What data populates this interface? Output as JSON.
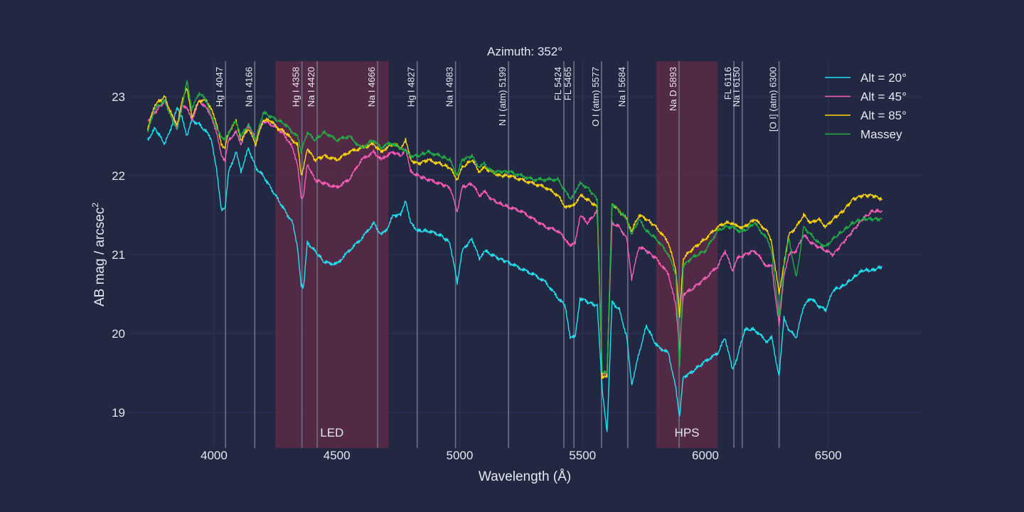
{
  "chart_data": {
    "type": "line",
    "title": "Azimuth: 352°",
    "xlabel": "Wavelength (Å)",
    "ylabel": "AB mag / arcsec",
    "ylabel_sup": "2",
    "xlim": [
      3650,
      6880
    ],
    "ylim": [
      23.45,
      18.55
    ],
    "y_inverted": true,
    "x_ticks": [
      4000,
      4500,
      5000,
      5500,
      6000,
      6500
    ],
    "y_ticks": [
      19,
      20,
      21,
      22,
      23
    ],
    "grid": true,
    "legend_position": "top-right",
    "regions": [
      {
        "label": "LED",
        "x0": 4250,
        "x1": 4710,
        "color": "#5a2a45"
      },
      {
        "label": "HPS",
        "x0": 5800,
        "x1": 6050,
        "color": "#5a2a45"
      }
    ],
    "lines": [
      {
        "label": "Hg I 4047",
        "x": 4047
      },
      {
        "label": "Na I 4166",
        "x": 4166
      },
      {
        "label": "Hg I 4358",
        "x": 4358
      },
      {
        "label": "Na I 4420",
        "x": 4420
      },
      {
        "label": "Na I 4666",
        "x": 4666
      },
      {
        "label": "Hg I 4827",
        "x": 4827
      },
      {
        "label": "Na I 4983",
        "x": 4983
      },
      {
        "label": "N I (atm) 5199",
        "x": 5199
      },
      {
        "label": "FL 5424",
        "x": 5424
      },
      {
        "label": "FL 5465",
        "x": 5465
      },
      {
        "label": "O I (atm) 5577",
        "x": 5577
      },
      {
        "label": "Na I 5684",
        "x": 5684
      },
      {
        "label": "Na D 5893",
        "x": 5893
      },
      {
        "label": "FL 6116",
        "x": 6116
      },
      {
        "label": "Na I 6150",
        "x": 6150
      },
      {
        "label": "[O I] (atm) 6300",
        "x": 6300
      }
    ],
    "series": [
      {
        "name": "Alt = 20°",
        "color": "#1fe4f2",
        "x": [
          3730,
          3760,
          3800,
          3830,
          3850,
          3870,
          3890,
          3910,
          3940,
          3970,
          3990,
          4010,
          4030,
          4045,
          4060,
          4090,
          4110,
          4140,
          4170,
          4200,
          4230,
          4260,
          4290,
          4320,
          4340,
          4355,
          4365,
          4380,
          4410,
          4450,
          4500,
          4550,
          4600,
          4650,
          4680,
          4700,
          4730,
          4760,
          4780,
          4800,
          4830,
          4870,
          4920,
          4960,
          4990,
          5010,
          5050,
          5080,
          5100,
          5130,
          5160,
          5200,
          5250,
          5300,
          5350,
          5400,
          5430,
          5450,
          5470,
          5490,
          5520,
          5560,
          5580,
          5600,
          5620,
          5650,
          5680,
          5700,
          5730,
          5760,
          5800,
          5850,
          5880,
          5895,
          5910,
          5940,
          6000,
          6050,
          6080,
          6110,
          6130,
          6160,
          6200,
          6250,
          6270,
          6300,
          6320,
          6340,
          6370,
          6400,
          6430,
          6460,
          6490,
          6520,
          6560,
          6600,
          6640,
          6680,
          6720
        ],
        "y": [
          22.45,
          22.6,
          22.4,
          22.65,
          22.85,
          22.75,
          22.5,
          22.7,
          22.65,
          22.55,
          22.45,
          22.1,
          21.55,
          21.6,
          22.05,
          22.3,
          22.05,
          22.35,
          22.1,
          22.0,
          21.85,
          21.7,
          21.55,
          21.4,
          21.1,
          20.6,
          20.6,
          21.15,
          21.05,
          20.9,
          20.88,
          21.05,
          21.2,
          21.4,
          21.25,
          21.3,
          21.5,
          21.5,
          21.7,
          21.4,
          21.3,
          21.3,
          21.25,
          21.15,
          20.65,
          21.05,
          21.2,
          20.95,
          21.05,
          21.0,
          20.95,
          20.9,
          20.82,
          20.75,
          20.65,
          20.45,
          20.35,
          19.95,
          19.95,
          20.45,
          20.4,
          20.35,
          19.3,
          18.75,
          20.4,
          20.3,
          19.95,
          19.35,
          19.75,
          20.1,
          19.85,
          19.75,
          19.3,
          18.95,
          19.45,
          19.5,
          19.65,
          19.75,
          19.95,
          19.55,
          19.7,
          20.05,
          20.05,
          19.9,
          19.95,
          19.45,
          20.2,
          20.05,
          19.95,
          20.35,
          20.45,
          20.35,
          20.3,
          20.55,
          20.6,
          20.7,
          20.8,
          20.8,
          20.85
        ]
      },
      {
        "name": "Alt = 45°",
        "color": "#ff5cba",
        "x": [
          3730,
          3760,
          3800,
          3830,
          3850,
          3870,
          3890,
          3910,
          3940,
          3970,
          3990,
          4010,
          4030,
          4045,
          4060,
          4090,
          4110,
          4140,
          4170,
          4200,
          4230,
          4260,
          4290,
          4320,
          4340,
          4355,
          4365,
          4380,
          4410,
          4450,
          4500,
          4550,
          4600,
          4650,
          4680,
          4700,
          4730,
          4760,
          4780,
          4800,
          4830,
          4870,
          4920,
          4960,
          4990,
          5010,
          5050,
          5080,
          5100,
          5130,
          5160,
          5200,
          5250,
          5300,
          5350,
          5400,
          5430,
          5450,
          5470,
          5490,
          5520,
          5560,
          5580,
          5600,
          5620,
          5650,
          5680,
          5700,
          5730,
          5760,
          5800,
          5850,
          5880,
          5895,
          5910,
          5940,
          6000,
          6050,
          6080,
          6110,
          6130,
          6160,
          6200,
          6250,
          6270,
          6300,
          6320,
          6340,
          6370,
          6400,
          6430,
          6460,
          6490,
          6520,
          6560,
          6600,
          6640,
          6680,
          6720
        ],
        "y": [
          22.7,
          22.8,
          22.95,
          22.75,
          22.6,
          22.9,
          22.85,
          22.7,
          22.95,
          22.85,
          22.75,
          22.55,
          22.25,
          22.2,
          22.45,
          22.55,
          22.4,
          22.65,
          22.45,
          22.7,
          22.65,
          22.6,
          22.5,
          22.35,
          22.15,
          21.7,
          21.75,
          22.15,
          21.95,
          21.9,
          21.85,
          21.95,
          22.2,
          22.3,
          22.2,
          22.25,
          22.3,
          22.25,
          22.35,
          22.05,
          22.0,
          21.95,
          21.9,
          21.85,
          21.55,
          21.85,
          21.9,
          21.75,
          21.8,
          21.7,
          21.65,
          21.6,
          21.55,
          21.45,
          21.35,
          21.3,
          21.2,
          21.1,
          21.15,
          21.5,
          21.4,
          21.55,
          19.5,
          19.5,
          21.4,
          21.35,
          21.2,
          20.7,
          21.1,
          21.05,
          20.95,
          20.75,
          20.35,
          19.8,
          20.5,
          20.55,
          20.7,
          20.85,
          21.05,
          20.8,
          20.95,
          21.0,
          21.05,
          20.85,
          20.85,
          20.1,
          20.75,
          21.0,
          21.05,
          21.25,
          21.15,
          21.1,
          21.05,
          21.0,
          21.15,
          21.3,
          21.45,
          21.55,
          21.55
        ]
      },
      {
        "name": "Alt = 85°",
        "color": "#ffd60a",
        "x": [
          3730,
          3760,
          3800,
          3830,
          3850,
          3870,
          3890,
          3910,
          3940,
          3970,
          3990,
          4010,
          4030,
          4045,
          4060,
          4090,
          4110,
          4140,
          4170,
          4200,
          4230,
          4260,
          4290,
          4320,
          4340,
          4355,
          4365,
          4380,
          4410,
          4450,
          4500,
          4550,
          4600,
          4650,
          4680,
          4700,
          4730,
          4760,
          4780,
          4800,
          4830,
          4870,
          4920,
          4960,
          4990,
          5010,
          5050,
          5080,
          5100,
          5130,
          5160,
          5200,
          5250,
          5300,
          5350,
          5400,
          5430,
          5450,
          5470,
          5490,
          5520,
          5560,
          5580,
          5600,
          5620,
          5650,
          5680,
          5700,
          5730,
          5760,
          5800,
          5850,
          5880,
          5895,
          5910,
          5940,
          6000,
          6050,
          6080,
          6110,
          6130,
          6160,
          6200,
          6250,
          6270,
          6300,
          6320,
          6340,
          6370,
          6400,
          6430,
          6460,
          6490,
          6520,
          6560,
          6600,
          6640,
          6680,
          6720
        ],
        "y": [
          22.6,
          22.9,
          23.0,
          22.75,
          22.65,
          22.95,
          23.1,
          22.75,
          22.95,
          22.95,
          22.85,
          22.65,
          22.4,
          22.35,
          22.55,
          22.7,
          22.45,
          22.6,
          22.4,
          22.7,
          22.7,
          22.6,
          22.55,
          22.45,
          22.4,
          22.0,
          22.1,
          22.35,
          22.2,
          22.25,
          22.2,
          22.3,
          22.35,
          22.4,
          22.3,
          22.35,
          22.4,
          22.35,
          22.45,
          22.2,
          22.15,
          22.2,
          22.15,
          22.1,
          21.95,
          22.1,
          22.2,
          22.05,
          22.1,
          22.05,
          22.0,
          22.0,
          21.95,
          21.9,
          21.85,
          21.75,
          21.6,
          21.6,
          21.65,
          21.75,
          21.7,
          21.6,
          19.45,
          19.45,
          21.65,
          21.55,
          21.45,
          21.3,
          21.5,
          21.45,
          21.35,
          21.15,
          20.8,
          20.2,
          20.95,
          21.05,
          21.2,
          21.35,
          21.4,
          21.4,
          21.35,
          21.35,
          21.45,
          21.3,
          21.15,
          20.5,
          20.9,
          21.25,
          21.35,
          21.5,
          21.4,
          21.45,
          21.35,
          21.45,
          21.55,
          21.7,
          21.75,
          21.75,
          21.7
        ]
      },
      {
        "name": "Massey",
        "color": "#1fae46",
        "x": [
          3730,
          3760,
          3800,
          3830,
          3850,
          3870,
          3890,
          3910,
          3940,
          3970,
          3990,
          4010,
          4030,
          4045,
          4060,
          4090,
          4110,
          4140,
          4170,
          4200,
          4230,
          4260,
          4290,
          4320,
          4340,
          4355,
          4365,
          4380,
          4410,
          4450,
          4500,
          4550,
          4600,
          4650,
          4680,
          4700,
          4730,
          4760,
          4780,
          4800,
          4830,
          4870,
          4920,
          4960,
          4990,
          5010,
          5050,
          5080,
          5100,
          5130,
          5160,
          5200,
          5250,
          5300,
          5350,
          5400,
          5430,
          5450,
          5470,
          5490,
          5520,
          5560,
          5580,
          5600,
          5620,
          5650,
          5680,
          5700,
          5730,
          5760,
          5800,
          5850,
          5880,
          5895,
          5910,
          5940,
          6000,
          6050,
          6080,
          6110,
          6130,
          6160,
          6200,
          6250,
          6270,
          6300,
          6320,
          6340,
          6370,
          6400,
          6430,
          6460,
          6490,
          6520,
          6560,
          6600,
          6640,
          6680,
          6720
        ],
        "y": [
          22.55,
          22.85,
          22.95,
          22.7,
          22.6,
          22.85,
          23.2,
          22.85,
          23.05,
          22.95,
          22.75,
          22.6,
          22.5,
          22.45,
          22.55,
          22.7,
          22.5,
          22.65,
          22.45,
          22.8,
          22.75,
          22.7,
          22.65,
          22.55,
          22.5,
          22.3,
          22.4,
          22.55,
          22.45,
          22.55,
          22.45,
          22.5,
          22.35,
          22.45,
          22.35,
          22.4,
          22.4,
          22.35,
          22.3,
          22.25,
          22.25,
          22.3,
          22.25,
          22.2,
          22.0,
          22.2,
          22.25,
          22.1,
          22.15,
          22.05,
          22.05,
          22.05,
          22.0,
          21.95,
          21.95,
          21.95,
          21.8,
          21.7,
          21.8,
          21.9,
          21.85,
          21.7,
          19.5,
          19.5,
          21.65,
          21.55,
          21.45,
          21.25,
          21.45,
          21.3,
          21.2,
          21.0,
          20.75,
          19.55,
          20.85,
          20.95,
          21.05,
          21.3,
          21.35,
          21.35,
          21.3,
          21.3,
          21.4,
          21.2,
          21.05,
          20.2,
          20.85,
          21.2,
          20.7,
          21.35,
          21.25,
          21.15,
          21.1,
          21.2,
          21.3,
          21.4,
          21.45,
          21.45,
          21.45
        ]
      }
    ]
  }
}
